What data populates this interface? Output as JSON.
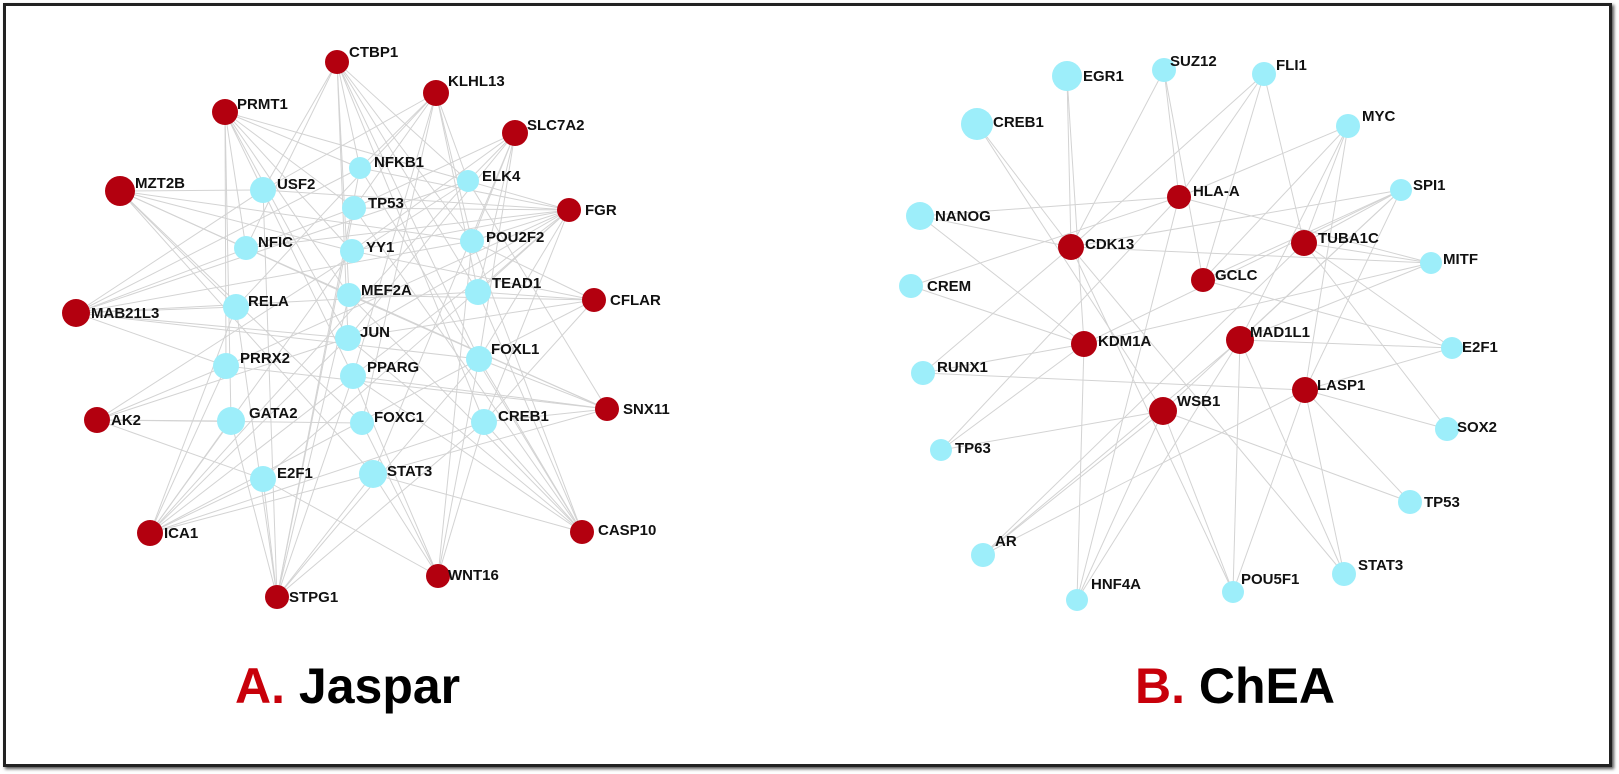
{
  "colors": {
    "tf": "#9deefa",
    "target": "#b3000f",
    "edge": "#d3d3d3"
  },
  "panels": [
    {
      "letter": "A.",
      "name": "Jaspar",
      "nodes": [
        {
          "id": "CTBP1",
          "type": "target"
        },
        {
          "id": "KLHL13",
          "type": "target"
        },
        {
          "id": "PRMT1",
          "type": "target"
        },
        {
          "id": "SLC7A2",
          "type": "target"
        },
        {
          "id": "MZT2B",
          "type": "target"
        },
        {
          "id": "FGR",
          "type": "target"
        },
        {
          "id": "MAB21L3",
          "type": "target"
        },
        {
          "id": "CFLAR",
          "type": "target"
        },
        {
          "id": "AK2",
          "type": "target"
        },
        {
          "id": "SNX11",
          "type": "target"
        },
        {
          "id": "ICA1",
          "type": "target"
        },
        {
          "id": "CASP10",
          "type": "target"
        },
        {
          "id": "STPG1",
          "type": "target"
        },
        {
          "id": "WNT16",
          "type": "target"
        },
        {
          "id": "NFKB1",
          "type": "tf"
        },
        {
          "id": "USF2",
          "type": "tf"
        },
        {
          "id": "ELK4",
          "type": "tf"
        },
        {
          "id": "TP53",
          "type": "tf"
        },
        {
          "id": "NFIC",
          "type": "tf"
        },
        {
          "id": "YY1",
          "type": "tf"
        },
        {
          "id": "POU2F2",
          "type": "tf"
        },
        {
          "id": "MEF2A",
          "type": "tf"
        },
        {
          "id": "TEAD1",
          "type": "tf"
        },
        {
          "id": "RELA",
          "type": "tf"
        },
        {
          "id": "JUN",
          "type": "tf"
        },
        {
          "id": "PRRX2",
          "type": "tf"
        },
        {
          "id": "FOXL1",
          "type": "tf"
        },
        {
          "id": "PPARG",
          "type": "tf"
        },
        {
          "id": "GATA2",
          "type": "tf"
        },
        {
          "id": "FOXC1",
          "type": "tf"
        },
        {
          "id": "CREB1",
          "type": "tf"
        },
        {
          "id": "E2F1",
          "type": "tf"
        },
        {
          "id": "STAT3",
          "type": "tf"
        }
      ]
    },
    {
      "letter": "B.",
      "name": "ChEA",
      "nodes": [
        {
          "id": "EGR1",
          "type": "tf"
        },
        {
          "id": "SUZ12",
          "type": "tf"
        },
        {
          "id": "FLI1",
          "type": "tf"
        },
        {
          "id": "CREB1",
          "type": "tf"
        },
        {
          "id": "MYC",
          "type": "tf"
        },
        {
          "id": "SPI1",
          "type": "tf"
        },
        {
          "id": "NANOG",
          "type": "tf"
        },
        {
          "id": "MITF",
          "type": "tf"
        },
        {
          "id": "CREM",
          "type": "tf"
        },
        {
          "id": "E2F1",
          "type": "tf"
        },
        {
          "id": "RUNX1",
          "type": "tf"
        },
        {
          "id": "SOX2",
          "type": "tf"
        },
        {
          "id": "TP63",
          "type": "tf"
        },
        {
          "id": "TP53",
          "type": "tf"
        },
        {
          "id": "AR",
          "type": "tf"
        },
        {
          "id": "STAT3",
          "type": "tf"
        },
        {
          "id": "HNF4A",
          "type": "tf"
        },
        {
          "id": "POU5F1",
          "type": "tf"
        },
        {
          "id": "HLA-A",
          "type": "target"
        },
        {
          "id": "CDK13",
          "type": "target"
        },
        {
          "id": "TUBA1C",
          "type": "target"
        },
        {
          "id": "GCLC",
          "type": "target"
        },
        {
          "id": "KDM1A",
          "type": "target"
        },
        {
          "id": "MAD1L1",
          "type": "target"
        },
        {
          "id": "LASP1",
          "type": "target"
        },
        {
          "id": "WSB1",
          "type": "target"
        }
      ]
    }
  ]
}
